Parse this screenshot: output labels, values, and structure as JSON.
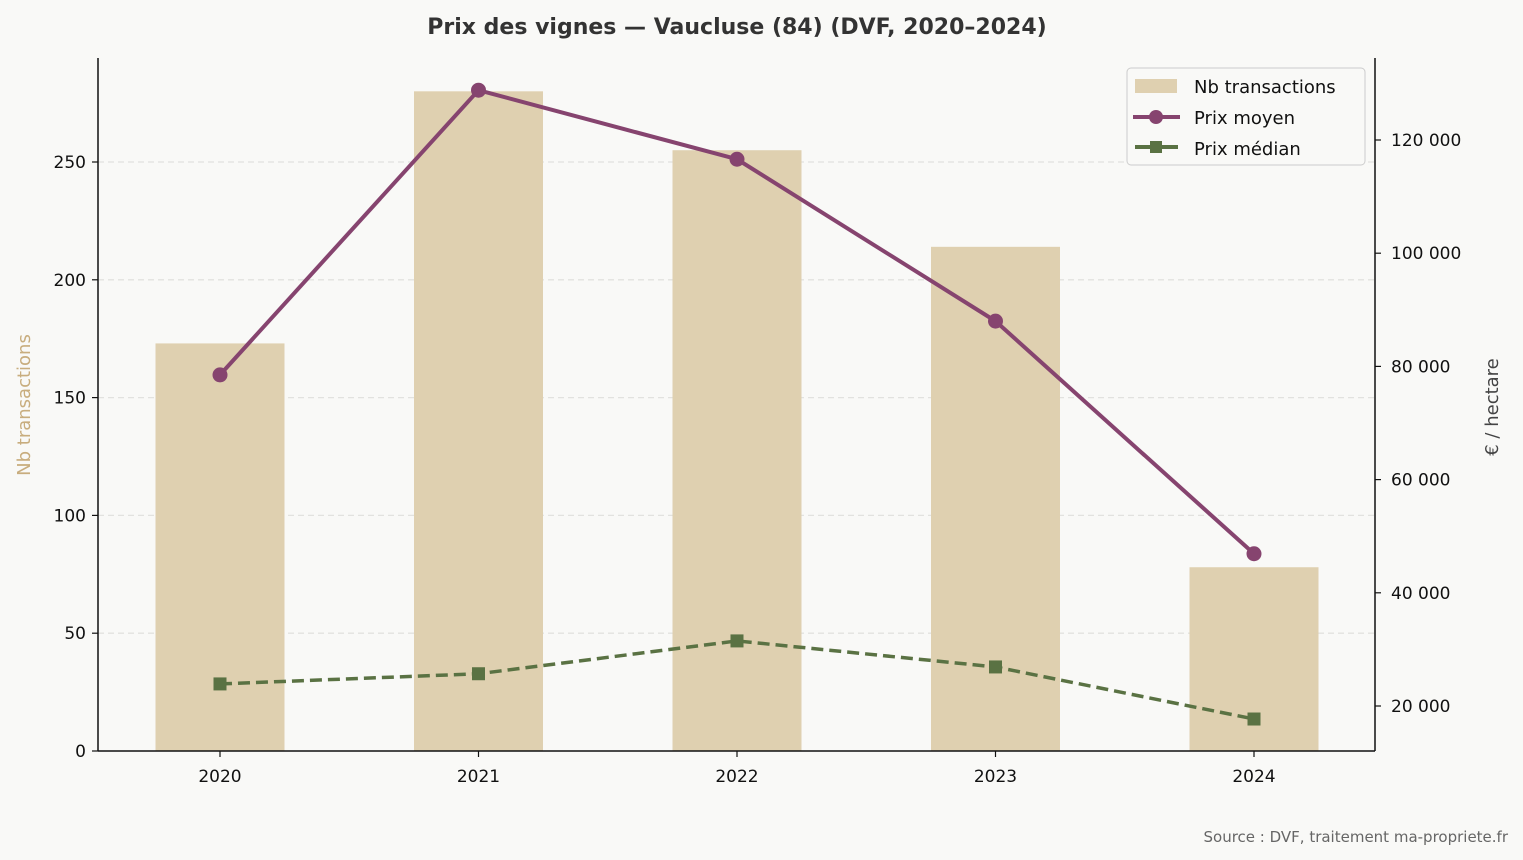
{
  "chart_data": {
    "type": "bar+line",
    "title": "Prix des vignes — Vaucluse (84) (DVF, 2020–2024)",
    "categories": [
      "2020",
      "2021",
      "2022",
      "2023",
      "2024"
    ],
    "xlabel": "",
    "ylabel_left": "Nb transactions",
    "ylabel_right": "€ / hectare",
    "ylim_left": [
      0,
      295
    ],
    "ylim_right": [
      12050,
      134500
    ],
    "yticks_left": [
      0,
      50,
      100,
      150,
      200,
      250
    ],
    "yticks_right": [
      20000,
      40000,
      60000,
      80000,
      100000,
      120000
    ],
    "yticks_right_labels": [
      "20 000",
      "40 000",
      "60 000",
      "80 000",
      "100 000",
      "120 000"
    ],
    "grid": "horizontal dashed (left axis)",
    "legend_position": "upper right",
    "series": [
      {
        "name": "Nb transactions",
        "type": "bar",
        "axis": "left",
        "color": "#dfd0b0",
        "values": [
          173,
          280,
          255,
          214,
          78
        ]
      },
      {
        "name": "Prix moyen",
        "type": "line",
        "marker": "circle",
        "style": "solid",
        "axis": "right",
        "color": "#86446f",
        "values": [
          78500,
          128800,
          116600,
          88000,
          46900
        ]
      },
      {
        "name": "Prix médian",
        "type": "line",
        "marker": "square",
        "style": "dashed",
        "axis": "right",
        "color": "#5a7243",
        "values": [
          23900,
          25700,
          31500,
          26900,
          17700
        ]
      }
    ],
    "annotations": [
      "Source : DVF, traitement ma-propriete.fr"
    ]
  },
  "labels": {
    "title": "Prix des vignes — Vaucluse (84) (DVF, 2020–2024)",
    "ylabel_left": "Nb transactions",
    "ylabel_right": "€ / hectare",
    "source": "Source : DVF, traitement ma-propriete.fr",
    "x": [
      "2020",
      "2021",
      "2022",
      "2023",
      "2024"
    ],
    "yleft": [
      "0",
      "50",
      "100",
      "150",
      "200",
      "250"
    ],
    "yright": [
      "20 000",
      "40 000",
      "60 000",
      "80 000",
      "100 000",
      "120 000"
    ],
    "legend": [
      "Nb transactions",
      "Prix moyen",
      "Prix médian"
    ]
  }
}
